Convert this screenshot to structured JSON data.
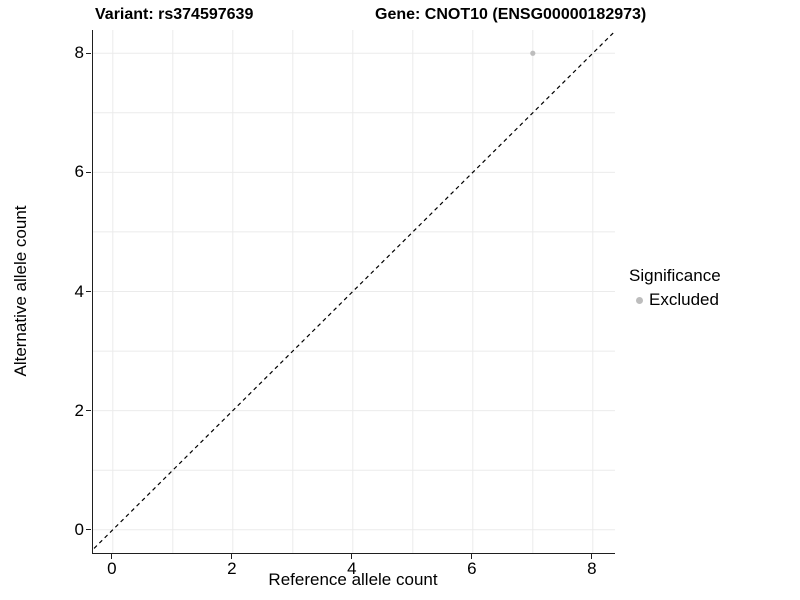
{
  "header": {
    "left_title": "Variant: rs374597639",
    "right_title": "Gene: CNOT10 (ENSG00000182973)"
  },
  "chart_data": {
    "type": "scatter",
    "title": "Variant: rs374597639 | Gene: CNOT10 (ENSG00000182973)",
    "xlabel": "Reference allele count",
    "ylabel": "Alternative allele count",
    "xlim": [
      -0.33,
      8.37
    ],
    "ylim": [
      -0.39,
      8.39
    ],
    "x_major_ticks": [
      0,
      2,
      4,
      6,
      8
    ],
    "x_minor_ticks": [
      1,
      3,
      5,
      7
    ],
    "y_major_ticks": [
      0,
      2,
      4,
      6,
      8
    ],
    "y_minor_ticks": [
      1,
      3,
      5,
      7
    ],
    "grid": {
      "show": true,
      "color": "#ebebeb",
      "minor": true
    },
    "reference_line": {
      "kind": "identity",
      "slope": 1,
      "intercept": 0,
      "style": "dashed",
      "color": "#000000"
    },
    "series": [
      {
        "name": "Excluded",
        "color": "#bdbdbd",
        "points": [
          {
            "x": 7,
            "y": 8
          }
        ]
      }
    ],
    "legend": {
      "title": "Significance",
      "position": "right",
      "items": [
        {
          "label": "Excluded",
          "color": "#bdbdbd"
        }
      ]
    }
  }
}
